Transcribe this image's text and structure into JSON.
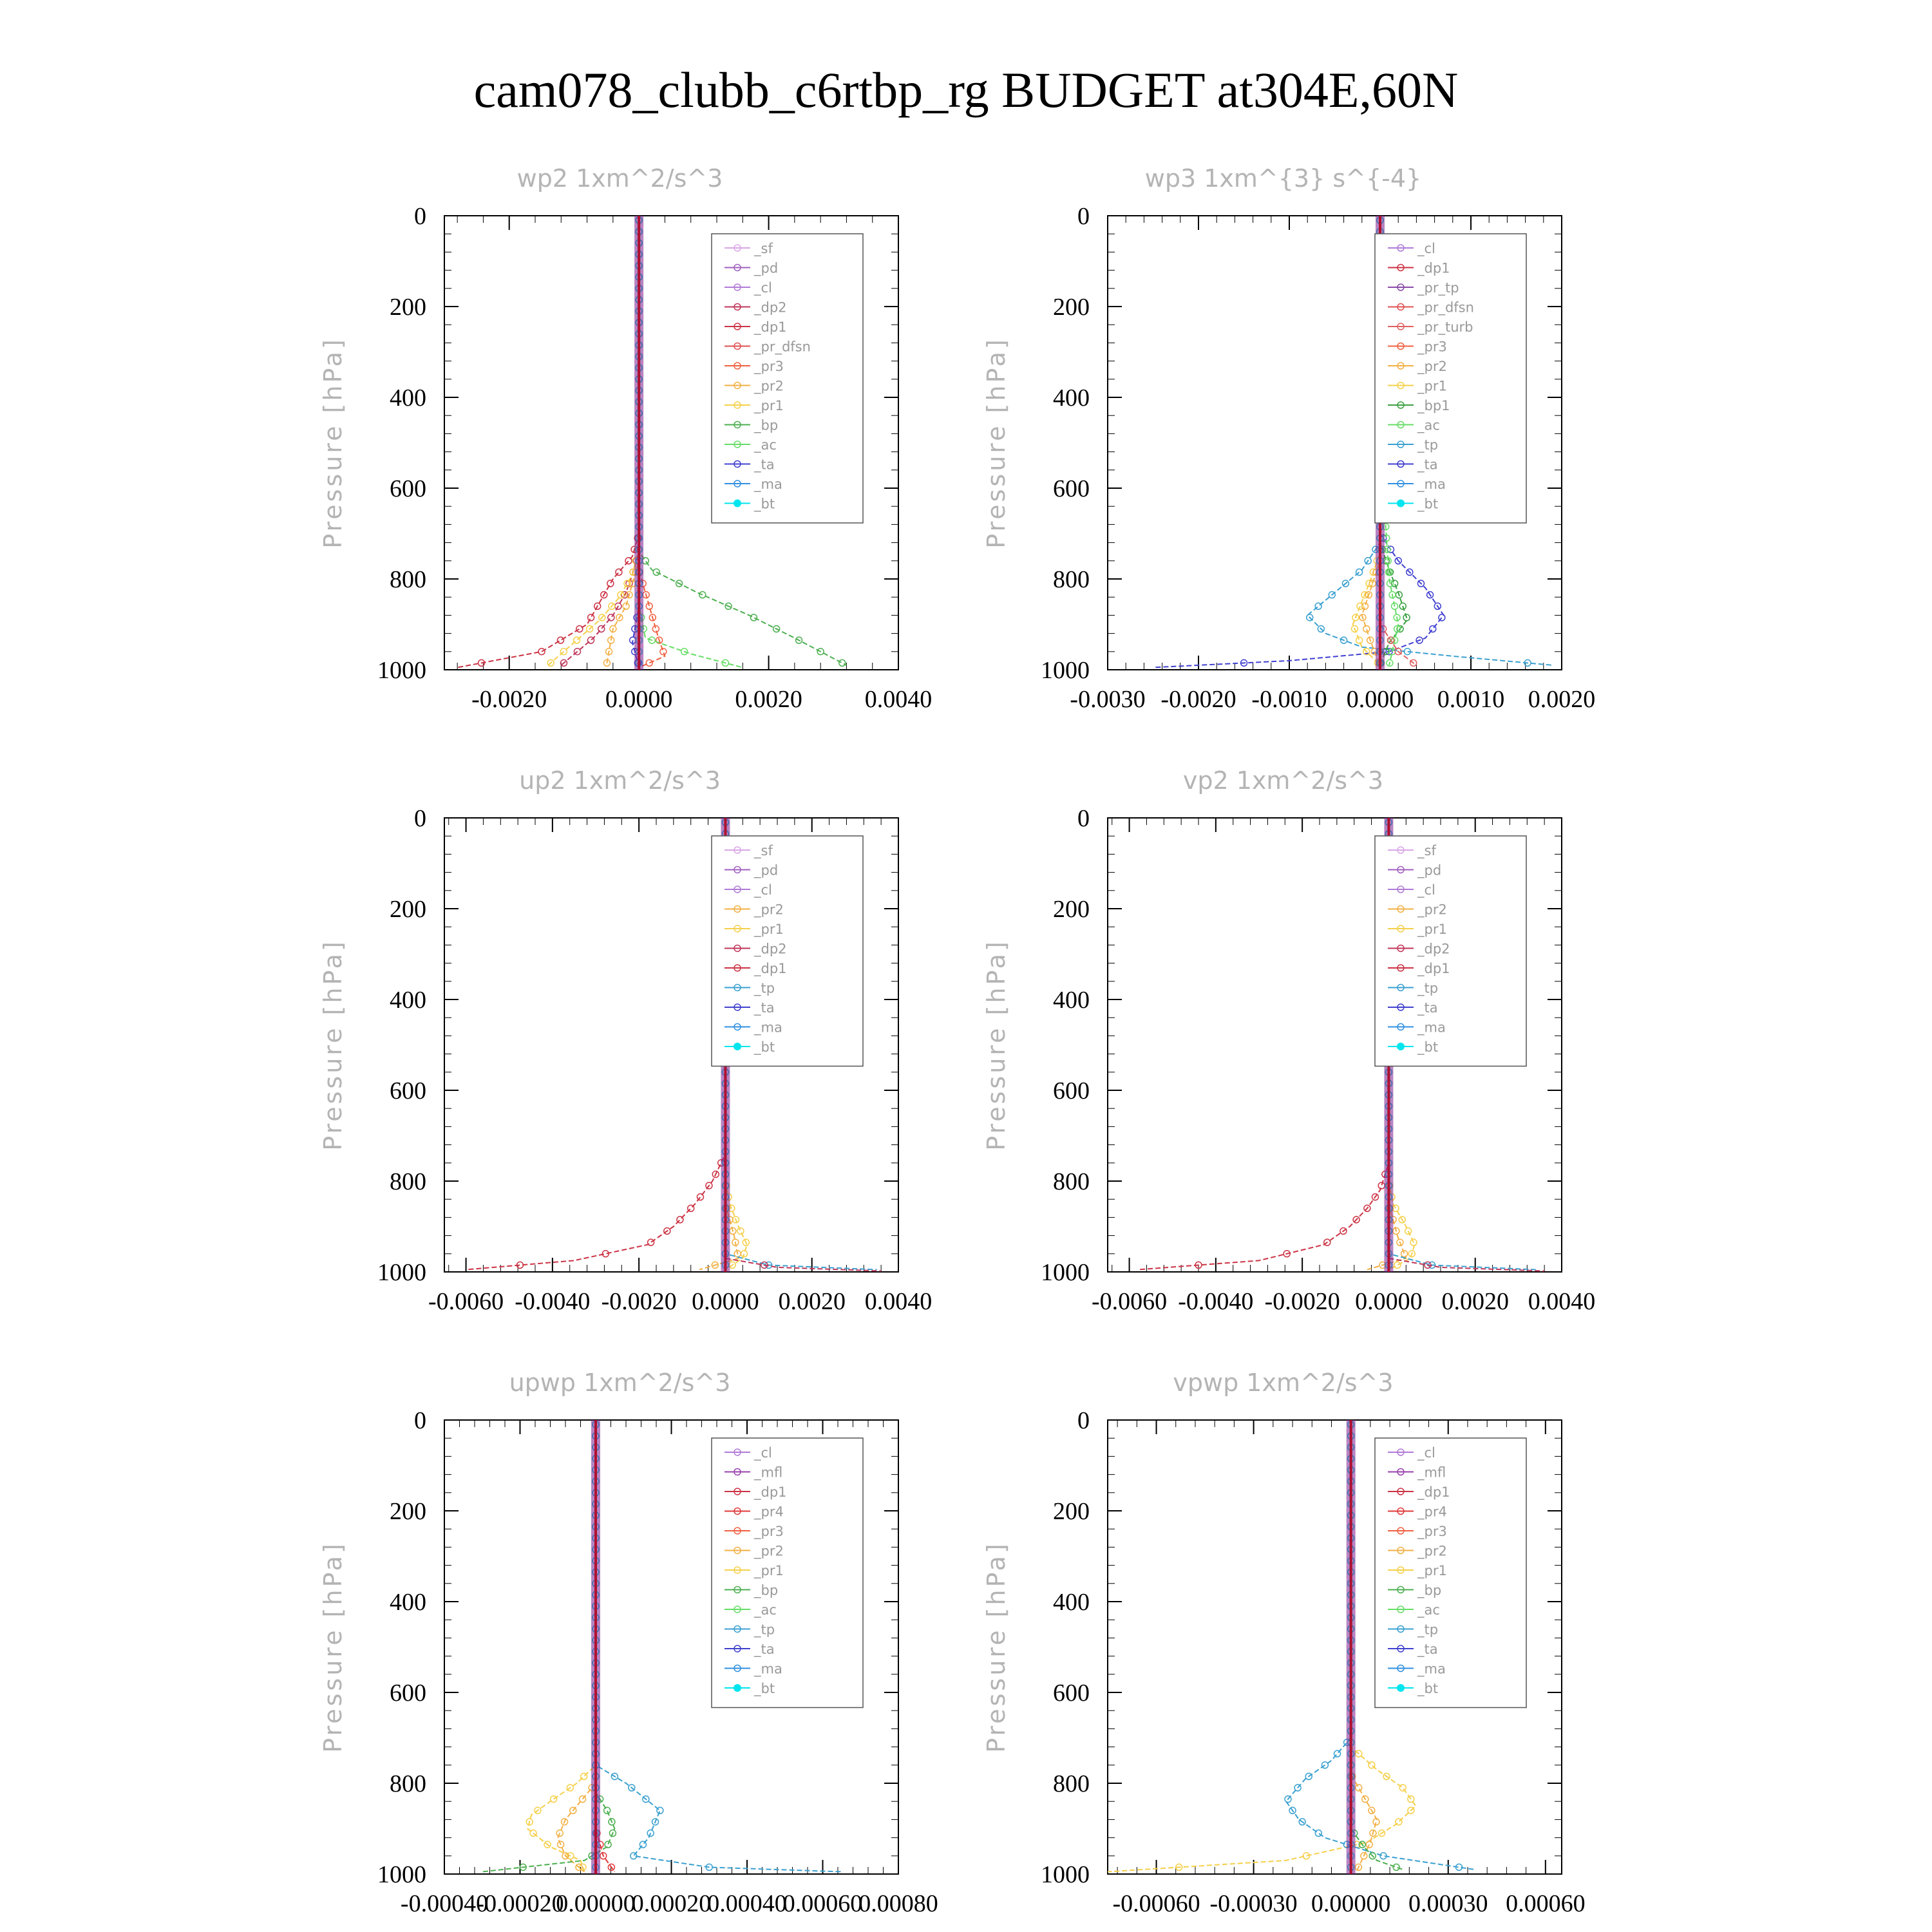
{
  "figure_title": "cam078_clubb_c6rtbp_rg  BUDGET at304E,60N",
  "legend_colors": {
    "_sf": "#d9a6e6",
    "_pd": "#a060c0",
    "_cl": "#b07ad8",
    "_mfl": "#9a3fae",
    "_dp2": "#c0365a",
    "_dp1": "#cc3344",
    "_pr_tp": "#8a4aa8",
    "_pr_dfsn": "#e05050",
    "_pr_turb": "#e06060",
    "_pr4": "#e03a3a",
    "_pr3": "#f06040",
    "_pr2": "#f2b044",
    "_pr1": "#f5d04a",
    "_bp": "#4caf50",
    "_bp1": "#3aa040",
    "_ac": "#66dd66",
    "_tp": "#3aa0d0",
    "_ta": "#4040d0",
    "_ma": "#3090e0",
    "_bt": "#00e5ee"
  },
  "chart_data": [
    {
      "type": "line",
      "title": "wp2  1xm^2/s^3",
      "ylabel": "Pressure [hPa]",
      "xlim": [
        -0.003,
        0.004
      ],
      "ylim": [
        0,
        1000
      ],
      "xticks": [
        "-0.0020",
        "0.0000",
        "0.0020",
        "0.0040"
      ],
      "yticks": [
        "0",
        "200",
        "400",
        "600",
        "800",
        "1000"
      ],
      "legend": [
        "_sf",
        "_pd",
        "_cl",
        "_dp2",
        "_dp1",
        "_pr_dfsn",
        "_pr3",
        "_pr2",
        "_pr1",
        "_bp",
        "_ac",
        "_ta",
        "_ma",
        "_bt"
      ],
      "legend_position": "top-right",
      "series": [
        {
          "name": "_dp1",
          "x": [
            0,
            0,
            -0.0001,
            -0.0004,
            -0.0006,
            -0.0008,
            -0.0015,
            -0.0028
          ],
          "y": [
            0,
            700,
            750,
            800,
            850,
            900,
            960,
            995
          ]
        },
        {
          "name": "_dp2",
          "x": [
            0,
            0,
            -0.0001,
            -0.0002,
            -0.0004,
            -0.0007,
            -0.0012
          ],
          "y": [
            0,
            740,
            790,
            830,
            880,
            930,
            990
          ]
        },
        {
          "name": "_pr1",
          "x": [
            0,
            0,
            -0.0001,
            -0.0003,
            -0.0006,
            -0.001,
            -0.0014
          ],
          "y": [
            0,
            730,
            790,
            840,
            890,
            940,
            990
          ]
        },
        {
          "name": "_pr2",
          "x": [
            0,
            0,
            -0.0001,
            -0.0002,
            -0.0004,
            -0.0005
          ],
          "y": [
            0,
            760,
            810,
            860,
            910,
            990
          ]
        },
        {
          "name": "_pr3",
          "x": [
            0,
            0,
            0.0001,
            0.0002,
            0.0003,
            0.0004,
            0
          ],
          "y": [
            0,
            780,
            830,
            880,
            930,
            970,
            995
          ]
        },
        {
          "name": "_bp",
          "x": [
            0,
            0,
            0.0002,
            0.0009,
            0.0017,
            0.0024,
            0.0032
          ],
          "y": [
            0,
            740,
            780,
            830,
            880,
            930,
            990
          ]
        },
        {
          "name": "_ac",
          "x": [
            0,
            0,
            0.0001,
            0.0008,
            0.0016
          ],
          "y": [
            0,
            860,
            930,
            965,
            995
          ]
        },
        {
          "name": "_ta",
          "x": [
            0,
            0,
            -0.0001,
            0
          ],
          "y": [
            0,
            860,
            940,
            995
          ]
        },
        {
          "name": "_bt",
          "x": [
            0,
            0
          ],
          "y": [
            0,
            1000
          ]
        }
      ]
    },
    {
      "type": "line",
      "title": "wp3  1xm^{3} s^{-4}",
      "ylabel": "Pressure [hPa]",
      "xlim": [
        -0.003,
        0.002
      ],
      "ylim": [
        0,
        1000
      ],
      "xticks": [
        "-0.0030",
        "-0.0020",
        "-0.0010",
        "0.0000",
        "0.0010",
        "0.0020"
      ],
      "yticks": [
        "0",
        "200",
        "400",
        "600",
        "800",
        "1000"
      ],
      "legend": [
        "_cl",
        "_dp1",
        "_pr_tp",
        "_pr_dfsn",
        "_pr_turb",
        "_pr3",
        "_pr2",
        "_pr1",
        "_bp1",
        "_ac",
        "_tp",
        "_ta",
        "_ma",
        "_bt"
      ],
      "legend_position": "top-right",
      "series": [
        {
          "name": "_ta",
          "x": [
            0,
            0,
            0.0002,
            0.0005,
            0.0007,
            0.0005,
            0.0001,
            -0.001,
            -0.0025
          ],
          "y": [
            0,
            700,
            760,
            820,
            880,
            930,
            960,
            980,
            995
          ]
        },
        {
          "name": "_tp",
          "x": [
            0,
            0,
            -0.0002,
            -0.0005,
            -0.0008,
            -0.0006,
            -0.0002,
            0.0008,
            0.0019
          ],
          "y": [
            0,
            720,
            780,
            830,
            880,
            920,
            950,
            970,
            990
          ]
        },
        {
          "name": "_bp1",
          "x": [
            0,
            0,
            0.0001,
            0.0002,
            0.0003,
            0.0001,
            0
          ],
          "y": [
            0,
            720,
            780,
            830,
            890,
            940,
            990
          ]
        },
        {
          "name": "_pr1",
          "x": [
            0,
            0,
            -0.0001,
            -0.0002,
            -0.0003,
            -0.0002,
            0
          ],
          "y": [
            0,
            740,
            800,
            850,
            900,
            950,
            990
          ]
        },
        {
          "name": "_pr2",
          "x": [
            0,
            0,
            -0.0001,
            -0.0002,
            -0.0001,
            0
          ],
          "y": [
            0,
            760,
            820,
            880,
            940,
            990
          ]
        },
        {
          "name": "_ac",
          "x": [
            0,
            0,
            0.0001,
            0.0002,
            0.0001
          ],
          "y": [
            0,
            500,
            800,
            900,
            990
          ]
        },
        {
          "name": "_pr_turb",
          "x": [
            0,
            0,
            0.0002,
            0.0004
          ],
          "y": [
            0,
            900,
            960,
            990
          ]
        },
        {
          "name": "_bt",
          "x": [
            0,
            0
          ],
          "y": [
            0,
            1000
          ]
        }
      ]
    },
    {
      "type": "line",
      "title": "up2  1xm^2/s^3",
      "ylabel": "Pressure [hPa]",
      "xlim": [
        -0.0065,
        0.004
      ],
      "ylim": [
        0,
        1000
      ],
      "xticks": [
        "-0.0060",
        "-0.0040",
        "-0.0020",
        "0.0000",
        "0.0020",
        "0.0040"
      ],
      "yticks": [
        "0",
        "200",
        "400",
        "600",
        "800",
        "1000"
      ],
      "legend": [
        "_sf",
        "_pd",
        "_cl",
        "_pr2",
        "_pr1",
        "_dp2",
        "_dp1",
        "_tp",
        "_ta",
        "_ma",
        "_bt"
      ],
      "legend_position": "top-right",
      "series": [
        {
          "name": "_dp1",
          "x": [
            0,
            0,
            -0.0003,
            -0.0007,
            -0.0012,
            -0.0018,
            -0.0035,
            -0.006
          ],
          "y": [
            0,
            740,
            800,
            850,
            900,
            940,
            975,
            995
          ]
        },
        {
          "name": "_pr1",
          "x": [
            0,
            0,
            0.0001,
            0.0003,
            0.0005,
            0.0004,
            0
          ],
          "y": [
            0,
            800,
            850,
            900,
            940,
            970,
            995
          ]
        },
        {
          "name": "_pr2",
          "x": [
            0,
            0,
            0.0002,
            0.0003,
            -0.0006
          ],
          "y": [
            0,
            850,
            920,
            970,
            995
          ]
        },
        {
          "name": "_tp",
          "x": [
            0,
            0,
            0.001,
            0.0035
          ],
          "y": [
            0,
            960,
            985,
            995
          ]
        },
        {
          "name": "_dp2",
          "x": [
            0,
            0,
            0.0012,
            0.0036
          ],
          "y": [
            0,
            970,
            990,
            998
          ]
        },
        {
          "name": "_bt",
          "x": [
            0,
            0
          ],
          "y": [
            0,
            1000
          ]
        }
      ]
    },
    {
      "type": "line",
      "title": "vp2  1xm^2/s^3",
      "ylabel": "Pressure [hPa]",
      "xlim": [
        -0.0065,
        0.004
      ],
      "ylim": [
        0,
        1000
      ],
      "xticks": [
        "-0.0060",
        "-0.0040",
        "-0.0020",
        "0.0000",
        "0.0020",
        "0.0040"
      ],
      "yticks": [
        "0",
        "200",
        "400",
        "600",
        "800",
        "1000"
      ],
      "legend": [
        "_sf",
        "_pd",
        "_cl",
        "_pr2",
        "_pr1",
        "_dp2",
        "_dp1",
        "_tp",
        "_ta",
        "_ma",
        "_bt"
      ],
      "legend_position": "top-right",
      "series": [
        {
          "name": "_dp1",
          "x": [
            0,
            0,
            -0.0002,
            -0.0005,
            -0.0009,
            -0.0015,
            -0.003,
            -0.0058
          ],
          "y": [
            0,
            760,
            820,
            860,
            900,
            940,
            975,
            995
          ]
        },
        {
          "name": "_pr1",
          "x": [
            0,
            0,
            0.0001,
            0.0004,
            0.0006,
            0.0005,
            0
          ],
          "y": [
            0,
            800,
            850,
            900,
            940,
            970,
            995
          ]
        },
        {
          "name": "_pr2",
          "x": [
            0,
            0,
            0.0002,
            0.0004,
            -0.0005
          ],
          "y": [
            0,
            850,
            920,
            970,
            995
          ]
        },
        {
          "name": "_tp",
          "x": [
            0,
            0,
            0.001,
            0.0034
          ],
          "y": [
            0,
            960,
            985,
            995
          ]
        },
        {
          "name": "_dp2",
          "x": [
            0,
            0,
            0.0012,
            0.0036
          ],
          "y": [
            0,
            970,
            990,
            998
          ]
        },
        {
          "name": "_bt",
          "x": [
            0,
            0
          ],
          "y": [
            0,
            1000
          ]
        }
      ]
    },
    {
      "type": "line",
      "title": "upwp  1xm^2/s^3",
      "ylabel": "Pressure [hPa]",
      "xlim": [
        -0.0004,
        0.0008
      ],
      "ylim": [
        0,
        1000
      ],
      "xticks": [
        "-0.00040",
        "-0.00020",
        "0.00000",
        "0.00020",
        "0.00040",
        "0.00060",
        "0.00080"
      ],
      "yticks": [
        "0",
        "200",
        "400",
        "600",
        "800",
        "1000"
      ],
      "legend": [
        "_cl",
        "_mfl",
        "_dp1",
        "_pr4",
        "_pr3",
        "_pr2",
        "_pr1",
        "_bp",
        "_ac",
        "_tp",
        "_ta",
        "_ma",
        "_bt"
      ],
      "legend_position": "top-right",
      "series": [
        {
          "name": "_pr1",
          "x": [
            0,
            0,
            -5e-05,
            -0.00012,
            -0.00017,
            -0.00018,
            -0.00012,
            -4e-05,
            -3e-05
          ],
          "y": [
            0,
            760,
            800,
            840,
            870,
            900,
            940,
            970,
            995
          ]
        },
        {
          "name": "_pr2",
          "x": [
            0,
            0,
            -4e-05,
            -8e-05,
            -0.0001,
            -8e-05,
            -3e-05
          ],
          "y": [
            0,
            800,
            840,
            880,
            920,
            960,
            995
          ]
        },
        {
          "name": "_tp",
          "x": [
            0,
            0,
            8e-05,
            0.00017,
            0.00014,
            0.0001,
            0.0003,
            0.00065
          ],
          "y": [
            0,
            760,
            800,
            860,
            920,
            960,
            985,
            995
          ]
        },
        {
          "name": "_bp",
          "x": [
            0,
            0,
            3e-05,
            5e-05,
            3e-05,
            -3e-05,
            -0.0003
          ],
          "y": [
            0,
            820,
            860,
            900,
            940,
            970,
            995
          ]
        },
        {
          "name": "_pr4",
          "x": [
            0,
            0,
            2e-05,
            5e-05
          ],
          "y": [
            0,
            900,
            960,
            995
          ]
        },
        {
          "name": "_bt",
          "x": [
            0,
            0
          ],
          "y": [
            0,
            1000
          ]
        }
      ]
    },
    {
      "type": "line",
      "title": "vpwp  1xm^2/s^3",
      "ylabel": "Pressure [hPa]",
      "xlim": [
        -0.00075,
        0.00065
      ],
      "ylim": [
        0,
        1000
      ],
      "xticks": [
        "-0.00060",
        "-0.00030",
        "0.00000",
        "0.00030",
        "0.00060"
      ],
      "yticks": [
        "0",
        "200",
        "400",
        "600",
        "800",
        "1000"
      ],
      "legend": [
        "_cl",
        "_mfl",
        "_dp1",
        "_pr4",
        "_pr3",
        "_pr2",
        "_pr1",
        "_bp",
        "_ac",
        "_tp",
        "_ta",
        "_ma",
        "_bt"
      ],
      "legend_position": "top-right",
      "series": [
        {
          "name": "_pr1",
          "x": [
            0,
            0,
            8e-05,
            0.00016,
            0.0002,
            0.00014,
            5e-05,
            -0.0002,
            -0.00075
          ],
          "y": [
            0,
            720,
            770,
            810,
            850,
            890,
            930,
            970,
            995
          ]
        },
        {
          "name": "_pr2",
          "x": [
            0,
            0,
            4e-05,
            8e-05,
            6e-05,
            2e-05
          ],
          "y": [
            0,
            780,
            830,
            880,
            930,
            990
          ]
        },
        {
          "name": "_tp",
          "x": [
            0,
            0,
            -6e-05,
            -0.00014,
            -0.0002,
            -0.00016,
            -8e-05,
            0.0001,
            0.00038
          ],
          "y": [
            0,
            700,
            750,
            790,
            840,
            880,
            920,
            960,
            990
          ]
        },
        {
          "name": "_bp",
          "x": [
            0,
            0,
            4e-05,
            8e-05,
            0.00016
          ],
          "y": [
            0,
            900,
            940,
            970,
            990
          ]
        },
        {
          "name": "_bt",
          "x": [
            0,
            0
          ],
          "y": [
            0,
            1000
          ]
        }
      ]
    }
  ]
}
